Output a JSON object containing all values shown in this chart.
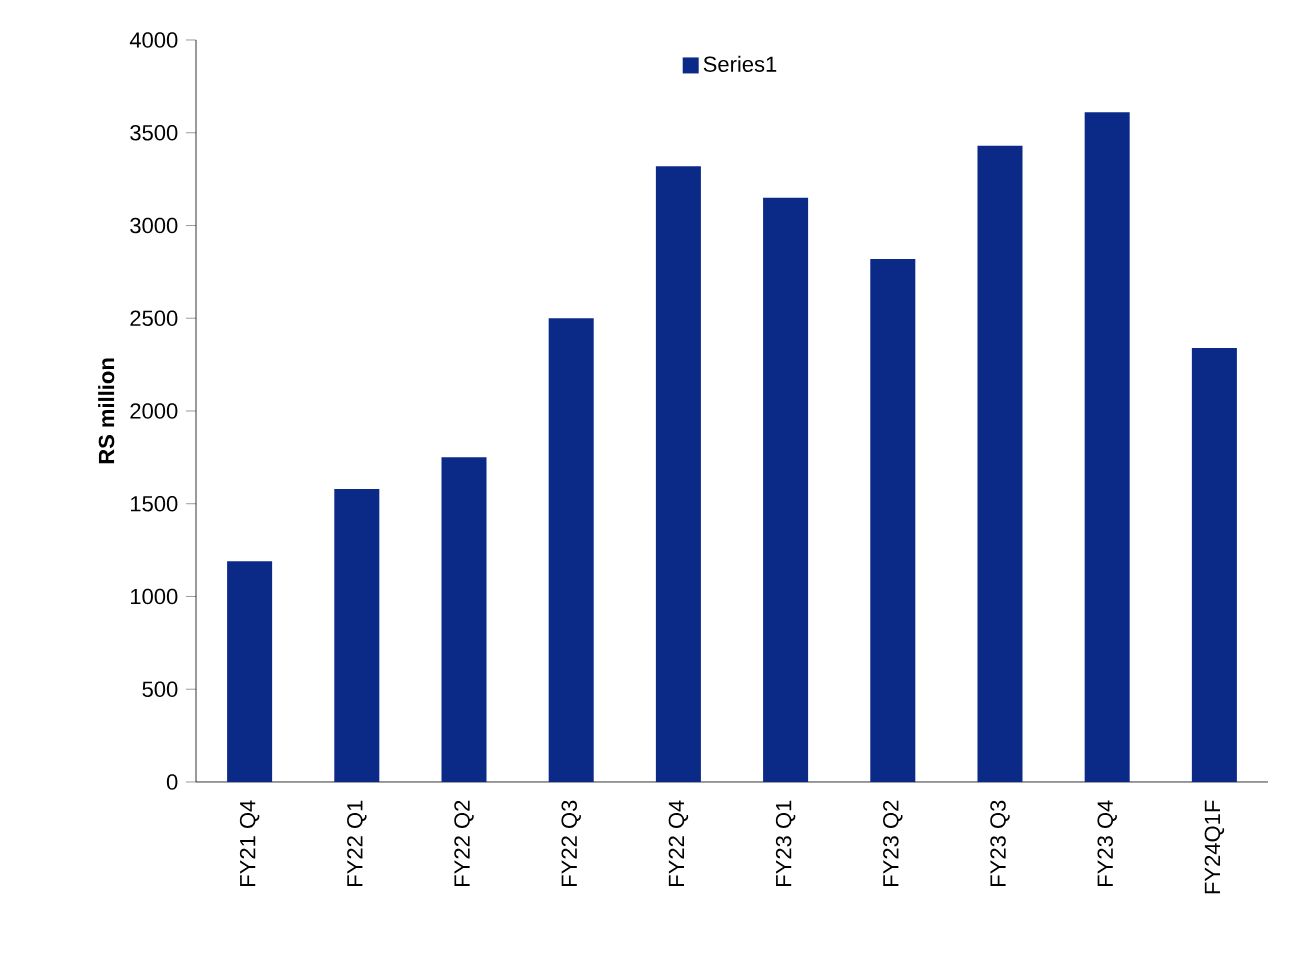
{
  "chart_data": {
    "type": "bar",
    "ylabel": "RS million",
    "categories": [
      "FY21 Q4",
      "FY22 Q1",
      "FY22 Q2",
      "FY22 Q3",
      "FY22 Q4",
      "FY23 Q1",
      "FY23 Q2",
      "FY23 Q3",
      "FY23 Q4",
      "FY24Q1F"
    ],
    "series": [
      {
        "name": "Series1",
        "color": "#0b2a88",
        "values": [
          1190,
          1580,
          1750,
          2500,
          3320,
          3150,
          2820,
          3430,
          3610,
          2340
        ]
      }
    ],
    "ylim": [
      0,
      4000
    ],
    "yticks": [
      0,
      500,
      1000,
      1500,
      2000,
      2500,
      3000,
      3500,
      4000
    ],
    "legend": "top"
  }
}
